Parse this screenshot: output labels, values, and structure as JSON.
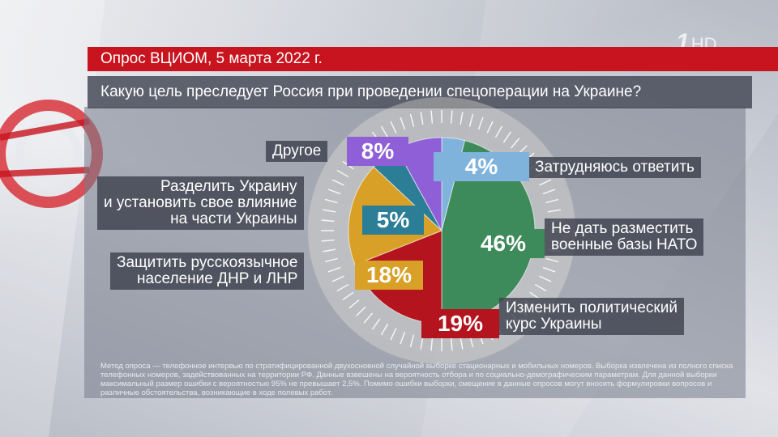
{
  "header": {
    "title": "Опрос ВЦИОМ, 5 марта 2022 г.",
    "question": "Какую цель преследует Россия при проведении спецоперации на Украине?",
    "logo_number": "1",
    "logo_hd": "HD"
  },
  "chart_data": {
    "type": "pie",
    "title": "Какую цель преследует Россия при проведении спецоперации на Украине?",
    "slices": [
      {
        "lines": [
          "Затрудняюсь ответить"
        ],
        "value": 4,
        "display": "4%",
        "color": "#7fb3dc"
      },
      {
        "lines": [
          "Не дать разместить",
          "военные базы НАТО"
        ],
        "value": 46,
        "display": "46%",
        "color": "#3d8a5a"
      },
      {
        "lines": [
          "Изменить политический",
          "курс Украины"
        ],
        "value": 19,
        "display": "19%",
        "color": "#b3141d"
      },
      {
        "lines": [
          "Защитить русскоязычное",
          "население ДНР и ЛНР"
        ],
        "value": 18,
        "display": "18%",
        "color": "#d9a027"
      },
      {
        "lines": [
          "Разделить Украину",
          "и установить свое влияние",
          "на части Украины"
        ],
        "value": 5,
        "display": "5%",
        "color": "#2c7e96"
      },
      {
        "lines": [
          "Другое"
        ],
        "value": 8,
        "display": "8%",
        "color": "#8e5fd6"
      }
    ]
  },
  "footnote": "Метод опроса — телефонное интервью по стратифицированной двухосновной случайной выборке стационарных и мобильных номеров. Выборка извлечена из полного списка телефонных номеров, задействованных на территории РФ. Данные взвешены на вероятность отбора и по социально-демографическим параметрам. Для данной выборки максимальный размер ошибки с вероятностью 95% не превышает 2,5%. Помимо ошибки выборки, смещение в данные опросов могут вносить формулировки вопросов и различные обстоятельства, возникающие в ходе полевых работ."
}
